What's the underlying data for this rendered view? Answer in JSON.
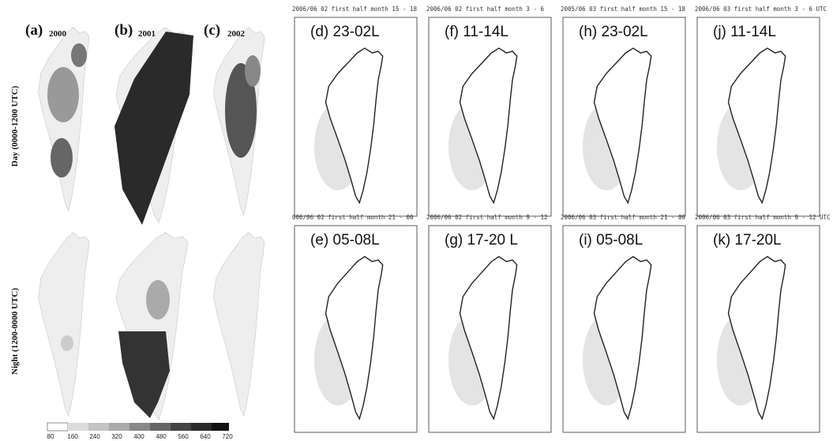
{
  "left": {
    "panels": [
      {
        "label": "(a)",
        "year": "2000"
      },
      {
        "label": "(b)",
        "year": "2001"
      },
      {
        "label": "(c)",
        "year": "2002"
      }
    ],
    "row_labels": [
      "Day (0000-1200 UTC)",
      "Night (1200-0000 UTC)"
    ],
    "colorbar_ticks": [
      80,
      160,
      240,
      320,
      400,
      480,
      560,
      640,
      720
    ]
  },
  "right": {
    "rows": [
      [
        {
          "header": "2006/06 02 first half month 15 - 18",
          "label": "(d) 23-02L"
        },
        {
          "header": "2006/06 02 first half month 3 - 6",
          "label": "(f) 11-14L"
        },
        {
          "header": "2005/06 03 first half month 15 - 18",
          "label": "(h) 23-02L"
        },
        {
          "header": "2006/06 03 first half month 3 - 6 UTC",
          "label": "(j) 11-14L"
        }
      ],
      [
        {
          "header": "006/06 02 first half month 21 - 00",
          "label": "(e) 05-08L"
        },
        {
          "header": "2006/06 02 first half month 9 - 12",
          "label": "(g) 17-20 L"
        },
        {
          "header": "2006/06 03 first half month 21 - 00",
          "label": "(i) 05-08L"
        },
        {
          "header": "2006/06 03 first half month 9 - 12 UTC",
          "label": "(k) 17-20L"
        }
      ]
    ]
  }
}
